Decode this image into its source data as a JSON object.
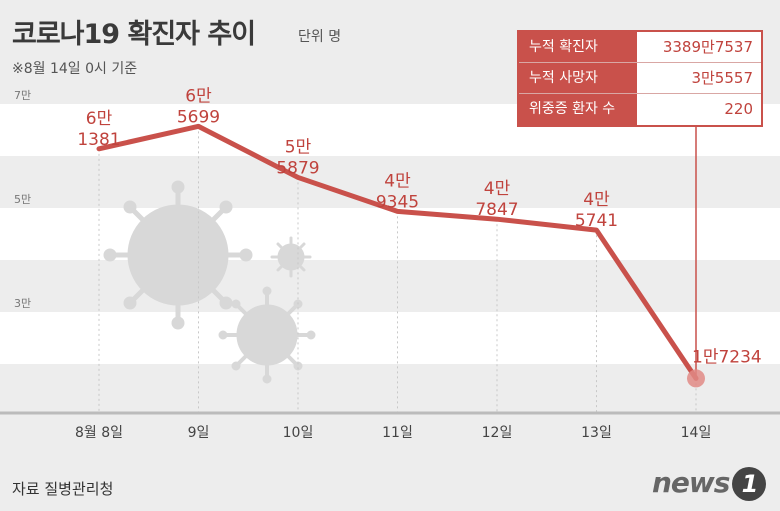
{
  "header": {
    "title": "코로나19 확진자 추이",
    "unit": "단위 명",
    "note": "※8월 14일 0시 기준"
  },
  "footer": {
    "source": "자료 질병관리청",
    "logo_text": "news",
    "logo_num": "1"
  },
  "summary": [
    {
      "label": "누적 확진자",
      "value": "3389만7537"
    },
    {
      "label": "누적 사망자",
      "value": "3만5557"
    },
    {
      "label": "위중증 환자 수",
      "value": "220"
    }
  ],
  "colors": {
    "line": "#c9514b",
    "label": "#c0433d",
    "band": "#ffffff",
    "background": "#ededed"
  },
  "chart_data": {
    "type": "line",
    "categories": [
      "8월 8일",
      "9일",
      "10일",
      "11일",
      "12일",
      "13일",
      "14일"
    ],
    "values": [
      61381,
      65699,
      55879,
      49345,
      47847,
      45741,
      17234
    ],
    "value_labels": [
      [
        "6만",
        "1381"
      ],
      [
        "6만",
        "5699"
      ],
      [
        "5만",
        "5879"
      ],
      [
        "4만",
        "9345"
      ],
      [
        "4만",
        "7847"
      ],
      [
        "4만",
        "5741"
      ],
      [
        "1만7234"
      ]
    ],
    "y_ticks": [
      {
        "value": 70000,
        "label": "7만"
      },
      {
        "value": 50000,
        "label": "5만"
      },
      {
        "value": 30000,
        "label": "3만"
      }
    ],
    "ylim": [
      10000,
      70000
    ],
    "grid": "vertical dashed guides, alternating horizontal bands"
  }
}
